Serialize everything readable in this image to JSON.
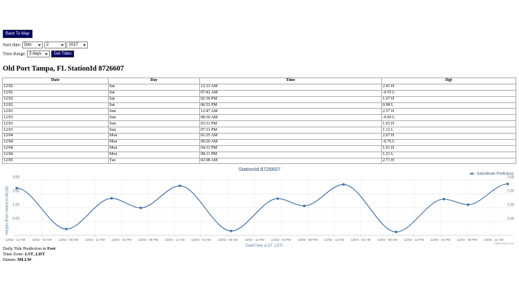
{
  "nav": {
    "back_button": "Back To Map"
  },
  "form": {
    "start_date_label": "Start date:",
    "month": "Dec",
    "day": "2",
    "year": "2017",
    "time_range_label": "Time Range:",
    "time_range": "3 days",
    "submit": "Get Tides"
  },
  "heading": "Old Port Tampa, FL StationId 8726607",
  "table": {
    "columns": [
      "Date",
      "Day",
      "Time",
      "Hgt"
    ],
    "rows": [
      [
        "12/02",
        "Sat",
        "12:13 AM",
        "2.41 H"
      ],
      [
        "12/02",
        "Sat",
        "07:42 AM",
        "-0.55 L"
      ],
      [
        "12/02",
        "Sat",
        "02:30 PM",
        "1.67 H"
      ],
      [
        "12/02",
        "Sat",
        "06:53 PM",
        "0.98 L"
      ],
      [
        "12/03",
        "Sun",
        "12:47 AM",
        "2.57 H"
      ],
      [
        "12/03",
        "Sun",
        "08:30 AM",
        "-0.69 L"
      ],
      [
        "12/03",
        "Sun",
        "03:31 PM",
        "1.65 H"
      ],
      [
        "12/03",
        "Sun",
        "07:31 PM",
        "1.12 L"
      ],
      [
        "12/04",
        "Mon",
        "01:25 AM",
        "2.67 H"
      ],
      [
        "12/04",
        "Mon",
        "09:20 AM",
        "-0.76 L"
      ],
      [
        "12/04",
        "Mon",
        "04:31 PM",
        "1.61 H"
      ],
      [
        "12/04",
        "Mon",
        "08:11 PM",
        "1.21 L"
      ],
      [
        "12/05",
        "Tue",
        "02:08 AM",
        "2.71 H"
      ]
    ]
  },
  "chart_data": {
    "type": "line",
    "title": "StationId 8726607",
    "x_label": "Date/Time (LST_LDT)",
    "y_label": "Heights (Feet relative to MLLW)",
    "x": [
      0.217,
      7.7,
      14.5,
      18.883,
      24.783,
      32.5,
      39.517,
      43.517,
      49.417,
      57.333,
      64.517,
      68.183,
      74.133
    ],
    "series": [
      {
        "name": "Subordinate Predictions",
        "color": "#4572a7",
        "values": [
          2.41,
          -0.55,
          1.67,
          0.98,
          2.57,
          -0.69,
          1.65,
          1.12,
          2.67,
          -0.76,
          1.61,
          1.21,
          2.71
        ]
      }
    ],
    "xlim": [
      0,
      75
    ],
    "ylim": [
      -1,
      3.2
    ],
    "xticks": [
      {
        "value": 0,
        "label": "12/02 - 12 AM"
      },
      {
        "value": 4,
        "label": "12/02 - 04 AM"
      },
      {
        "value": 8,
        "label": "12/02 - 08 AM"
      },
      {
        "value": 12,
        "label": "12/02 - 12 PM"
      },
      {
        "value": 16,
        "label": "12/02 - 04 PM"
      },
      {
        "value": 20,
        "label": "12/02 - 08 PM"
      },
      {
        "value": 24,
        "label": "12/03 - 12 AM"
      },
      {
        "value": 28,
        "label": "12/03 - 04 AM"
      },
      {
        "value": 32,
        "label": "12/03 - 08 AM"
      },
      {
        "value": 36,
        "label": "12/03 - 12 PM"
      },
      {
        "value": 40,
        "label": "12/03 - 04 PM"
      },
      {
        "value": 44,
        "label": "12/03 - 08 PM"
      },
      {
        "value": 48,
        "label": "12/04 - 12 AM"
      },
      {
        "value": 52,
        "label": "12/04 - 04 AM"
      },
      {
        "value": 56,
        "label": "12/04 - 08 AM"
      },
      {
        "value": 60,
        "label": "12/04 - 12 PM"
      },
      {
        "value": 64,
        "label": "12/04 - 04 PM"
      },
      {
        "value": 68,
        "label": "12/04 - 08 PM"
      },
      {
        "value": 72,
        "label": "12/05 - 12 AM"
      }
    ],
    "yticks": [
      {
        "value": 0,
        "label": "0.00"
      },
      {
        "value": 1,
        "label": "1.00"
      },
      {
        "value": 2,
        "label": "2.00"
      },
      {
        "value": 3,
        "label": "3.00"
      }
    ],
    "y2ticks": [
      {
        "value": 0,
        "label": "0.00"
      },
      {
        "value": 1,
        "label": "1.00"
      },
      {
        "value": 2,
        "label": "2.00"
      },
      {
        "value": 3,
        "label": "3.00"
      }
    ],
    "grid": true,
    "legend": "top-right",
    "credit": "Highcharts.com"
  },
  "footer": {
    "prediction_label": "Daily Tide Prediction in",
    "prediction_unit": "Feet",
    "timezone_label": "Time Zone:",
    "timezone": "LST_LDT",
    "datum_label": "Datum:",
    "datum": "MLLW"
  }
}
